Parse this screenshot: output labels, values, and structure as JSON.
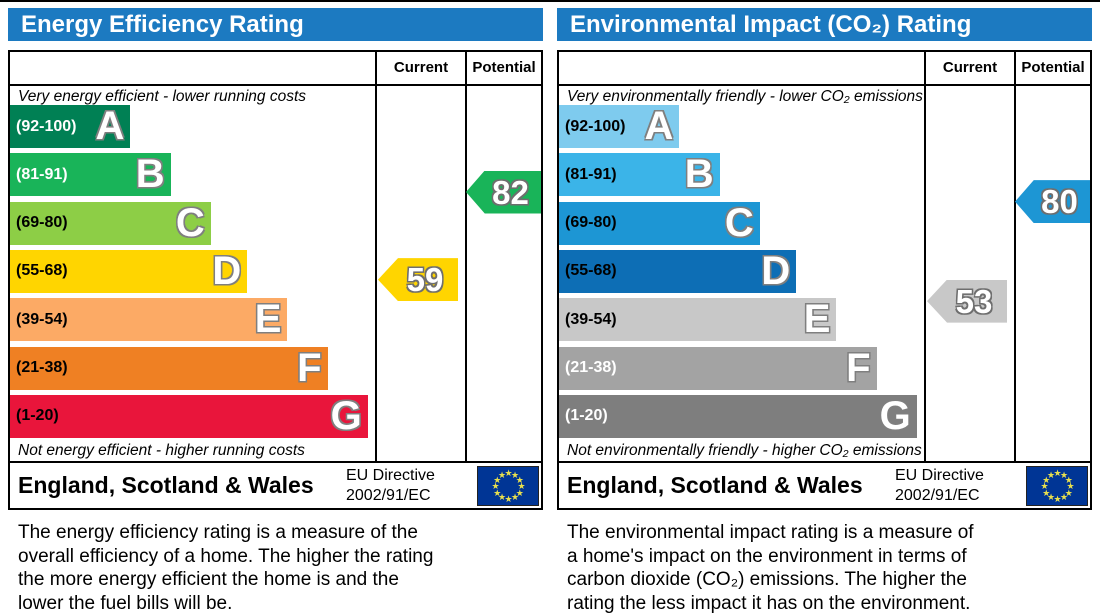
{
  "theme": {
    "header_bg": "#1c7ac1",
    "border": "#000000",
    "letter_outline": "#7f7f7f"
  },
  "eu_flag": {
    "bg": "#003595",
    "stars": "#e8e04e"
  },
  "chart_data": [
    {
      "type": "bar",
      "title": "Energy Efficiency Rating",
      "columns": {
        "current": "Current",
        "potential": "Potential"
      },
      "top_caption": "Very energy efficient - lower running costs",
      "bottom_caption": "Not energy efficient - higher running costs",
      "bands": [
        {
          "letter": "A",
          "label": "(92-100)",
          "lo": 92,
          "hi": 100,
          "color": "#008054",
          "label_color": "#ffffff",
          "width_pct": 33
        },
        {
          "letter": "B",
          "label": "(81-91)",
          "lo": 81,
          "hi": 91,
          "color": "#19b459",
          "label_color": "#ffffff",
          "width_pct": 44
        },
        {
          "letter": "C",
          "label": "(69-80)",
          "lo": 69,
          "hi": 80,
          "color": "#8dce46",
          "label_color": "#000000",
          "width_pct": 55
        },
        {
          "letter": "D",
          "label": "(55-68)",
          "lo": 55,
          "hi": 68,
          "color": "#ffd500",
          "label_color": "#000000",
          "width_pct": 65
        },
        {
          "letter": "E",
          "label": "(39-54)",
          "lo": 39,
          "hi": 54,
          "color": "#fcaa65",
          "label_color": "#000000",
          "width_pct": 76
        },
        {
          "letter": "F",
          "label": "(21-38)",
          "lo": 21,
          "hi": 38,
          "color": "#ef8023",
          "label_color": "#000000",
          "width_pct": 87
        },
        {
          "letter": "G",
          "label": "(1-20)",
          "lo": 1,
          "hi": 20,
          "color": "#e9153b",
          "label_color": "#000000",
          "width_pct": 98
        }
      ],
      "current": {
        "value": 59,
        "band": "D",
        "color": "#ffd500"
      },
      "potential": {
        "value": 82,
        "band": "B",
        "color": "#19b459"
      },
      "footer": {
        "region": "England, Scotland & Wales",
        "directive_line1": "EU Directive",
        "directive_line2": "2002/91/EC"
      },
      "description_lines": [
        "The energy efficiency rating is a measure of the",
        "overall efficiency of a home. The higher the rating",
        "the more energy efficient the home is and the",
        "lower the fuel bills will be."
      ]
    },
    {
      "type": "bar",
      "title": "Environmental Impact (CO₂) Rating",
      "columns": {
        "current": "Current",
        "potential": "Potential"
      },
      "top_caption": "Very environmentally friendly - lower CO₂ emissions",
      "bottom_caption": "Not environmentally friendly - higher CO₂ emissions",
      "bands": [
        {
          "letter": "A",
          "label": "(92-100)",
          "lo": 92,
          "hi": 100,
          "color": "#7ecbee",
          "label_color": "#000000",
          "width_pct": 33
        },
        {
          "letter": "B",
          "label": "(81-91)",
          "lo": 81,
          "hi": 91,
          "color": "#3bb4e8",
          "label_color": "#000000",
          "width_pct": 44
        },
        {
          "letter": "C",
          "label": "(69-80)",
          "lo": 69,
          "hi": 80,
          "color": "#1d96d4",
          "label_color": "#000000",
          "width_pct": 55
        },
        {
          "letter": "D",
          "label": "(55-68)",
          "lo": 55,
          "hi": 68,
          "color": "#0d6eb5",
          "label_color": "#000000",
          "width_pct": 65
        },
        {
          "letter": "E",
          "label": "(39-54)",
          "lo": 39,
          "hi": 54,
          "color": "#c8c8c8",
          "label_color": "#000000",
          "width_pct": 76
        },
        {
          "letter": "F",
          "label": "(21-38)",
          "lo": 21,
          "hi": 38,
          "color": "#a3a3a3",
          "label_color": "#ffffff",
          "width_pct": 87
        },
        {
          "letter": "G",
          "label": "(1-20)",
          "lo": 1,
          "hi": 20,
          "color": "#7e7e7e",
          "label_color": "#ffffff",
          "width_pct": 98
        }
      ],
      "current": {
        "value": 53,
        "band": "E",
        "color": "#c8c8c8"
      },
      "potential": {
        "value": 80,
        "band": "C",
        "color": "#1d96d4"
      },
      "footer": {
        "region": "England, Scotland & Wales",
        "directive_line1": "EU Directive",
        "directive_line2": "2002/91/EC"
      },
      "description_lines": [
        "The environmental impact rating is a measure of",
        "a home's impact on the environment in terms of",
        "carbon dioxide (CO₂) emissions. The higher the",
        "rating the less impact it has on the environment."
      ]
    }
  ]
}
